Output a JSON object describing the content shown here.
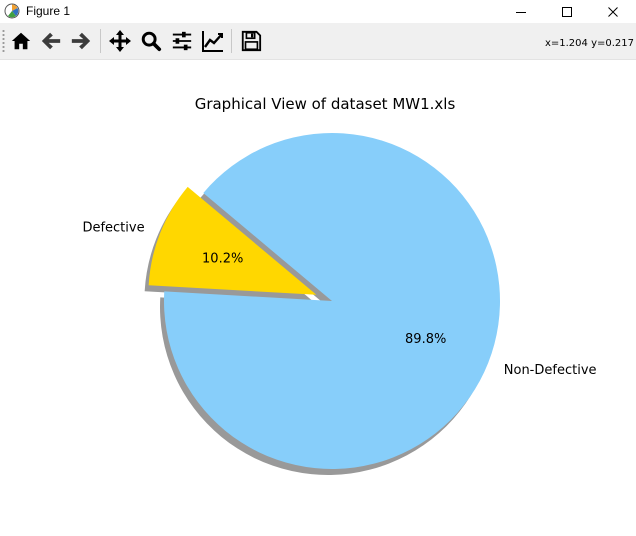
{
  "window": {
    "title": "Figure 1",
    "icon": "matplotlib-icon",
    "controls": [
      "minimize-icon",
      "maximize-icon",
      "close-icon"
    ]
  },
  "toolbar": {
    "buttons": [
      {
        "name": "home-button",
        "icon": "home-icon"
      },
      {
        "name": "back-button",
        "icon": "arrow-left-icon"
      },
      {
        "name": "forward-button",
        "icon": "arrow-right-icon"
      },
      {
        "name": "pan-button",
        "icon": "move-icon"
      },
      {
        "name": "zoom-button",
        "icon": "magnifier-icon"
      },
      {
        "name": "subplots-button",
        "icon": "sliders-icon"
      },
      {
        "name": "edit-axes-button",
        "icon": "chart-line-icon"
      },
      {
        "name": "save-button",
        "icon": "floppy-disk-icon"
      }
    ],
    "coordinates": "x=1.204 y=0.217"
  },
  "chart_data": {
    "type": "pie",
    "title": "Graphical View of dataset MW1.xls",
    "slices": [
      {
        "label": "Defective",
        "value": 10.2,
        "pct_label": "10.2%",
        "color": "#ffd700",
        "explode": 0.1
      },
      {
        "label": "Non-Defective",
        "value": 89.8,
        "pct_label": "89.8%",
        "color": "#87cefa",
        "explode": 0
      }
    ],
    "start_angle_deg": 140,
    "shadow": true,
    "shadow_color": "#999999"
  }
}
